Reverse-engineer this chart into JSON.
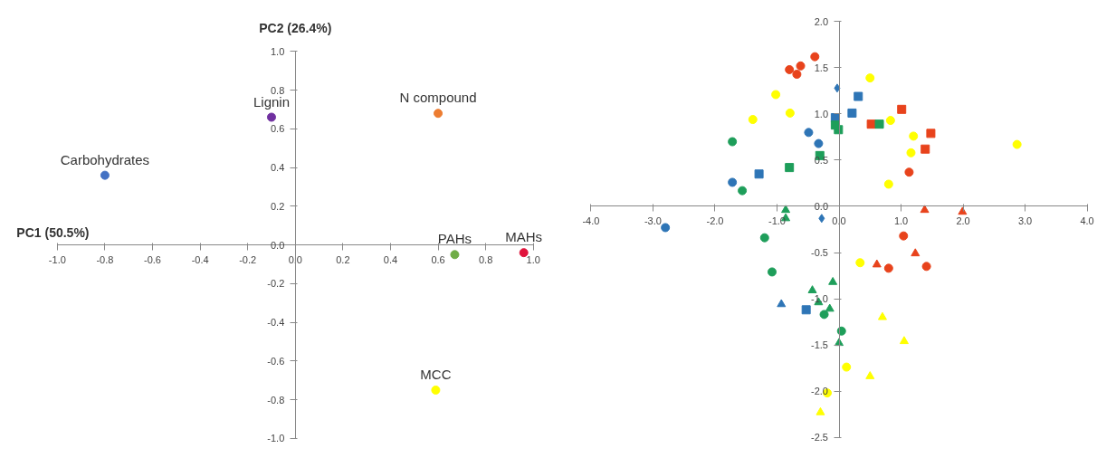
{
  "chart_data": [
    {
      "type": "scatter",
      "xlabel": "PC1 (50.5%)",
      "ylabel": "PC2 (26.4%)",
      "grid": false,
      "marker": "circle",
      "xlim": [
        -1.0,
        1.0
      ],
      "ylim": [
        -1.0,
        1.0
      ],
      "xticks": [
        {
          "value": -1.0,
          "label": "-1.0"
        },
        {
          "value": -0.8,
          "label": "-0.8"
        },
        {
          "value": -0.6,
          "label": "-0.6"
        },
        {
          "value": -0.4,
          "label": "-0.4"
        },
        {
          "value": -0.2,
          "label": "-0.2"
        },
        {
          "value": 0,
          "label": "0.0"
        },
        {
          "value": 0.2,
          "label": "0.2"
        },
        {
          "value": 0.4,
          "label": "0.4"
        },
        {
          "value": 0.6,
          "label": "0.6"
        },
        {
          "value": 0.8,
          "label": "0.8"
        },
        {
          "value": 1.0,
          "label": "1.0"
        }
      ],
      "yticks": [
        {
          "value": -1.0,
          "label": "-1.0"
        },
        {
          "value": -0.8,
          "label": "-0.8"
        },
        {
          "value": -0.6,
          "label": "-0.6"
        },
        {
          "value": -0.4,
          "label": "-0.4"
        },
        {
          "value": -0.2,
          "label": "-0.2"
        },
        {
          "value": 0,
          "label": "0.0"
        },
        {
          "value": 0.2,
          "label": "0.2"
        },
        {
          "value": 0.4,
          "label": "0.4"
        },
        {
          "value": 0.6,
          "label": "0.6"
        },
        {
          "value": 0.8,
          "label": "0.8"
        },
        {
          "value": 1.0,
          "label": "1.0"
        }
      ],
      "series": [
        {
          "name": "Carbohydrates",
          "color": "#4472c4",
          "x": [
            -0.8
          ],
          "values": [
            0.36
          ]
        },
        {
          "name": "Lignin",
          "color": "#7030a0",
          "x": [
            -0.1
          ],
          "values": [
            0.66
          ]
        },
        {
          "name": "N compound",
          "color": "#ed7d31",
          "x": [
            0.6
          ],
          "values": [
            0.68
          ]
        },
        {
          "name": "PAHs",
          "color": "#70ad47",
          "x": [
            0.67
          ],
          "values": [
            -0.05
          ]
        },
        {
          "name": "MAHs",
          "color": "#e0143c",
          "x": [
            0.96
          ],
          "values": [
            -0.04
          ]
        },
        {
          "name": "MCC",
          "color": "#ffff00",
          "x": [
            0.59
          ],
          "values": [
            -0.75
          ]
        }
      ]
    },
    {
      "type": "scatter",
      "grid": false,
      "xlim": [
        -4.0,
        4.0
      ],
      "ylim": [
        -2.5,
        2.0
      ],
      "xticks": [
        {
          "value": -4,
          "label": "-4.0"
        },
        {
          "value": -3,
          "label": "-3.0"
        },
        {
          "value": -2,
          "label": "-2.0"
        },
        {
          "value": -1,
          "label": "-1.0"
        },
        {
          "value": 0,
          "label": "0.0"
        },
        {
          "value": 1,
          "label": "1.0"
        },
        {
          "value": 2,
          "label": "2.0"
        },
        {
          "value": 3,
          "label": "3.0"
        },
        {
          "value": 4,
          "label": "4.0"
        }
      ],
      "yticks": [
        {
          "value": -2.5,
          "label": "-2.5"
        },
        {
          "value": -2,
          "label": "-2.0"
        },
        {
          "value": -1.5,
          "label": "-1.5"
        },
        {
          "value": -1,
          "label": "-1.0"
        },
        {
          "value": -0.5,
          "label": "-0.5"
        },
        {
          "value": 0,
          "label": "0.0"
        },
        {
          "value": 0.5,
          "label": "0.5"
        },
        {
          "value": 1,
          "label": "1.0"
        },
        {
          "value": 1.5,
          "label": "1.5"
        },
        {
          "value": 2,
          "label": "2.0"
        }
      ],
      "series": [
        {
          "color": "#e8431c",
          "marker": "circle",
          "x": [
            -0.8,
            -0.68,
            -0.62,
            -0.39,
            1.13,
            0.8,
            1.41,
            1.04
          ],
          "values": [
            1.48,
            1.43,
            1.52,
            1.62,
            0.37,
            -0.67,
            -0.65,
            -0.32
          ]
        },
        {
          "color": "#e8431c",
          "marker": "square",
          "x": [
            0.52,
            1.01,
            1.48,
            1.39
          ],
          "values": [
            0.89,
            1.05,
            0.79,
            0.62
          ]
        },
        {
          "color": "#e8431c",
          "marker": "triangle",
          "x": [
            1.38,
            1.99,
            0.61,
            1.23
          ],
          "values": [
            -0.04,
            -0.06,
            -0.63,
            -0.51
          ]
        },
        {
          "color": "#ffff00",
          "marker": "circle",
          "x": [
            -1.02,
            -1.39,
            -0.79,
            0.83,
            1.2,
            1.16,
            2.87,
            0.8,
            0.5,
            0.34,
            0.12,
            -0.19
          ],
          "values": [
            1.21,
            0.94,
            1.01,
            0.93,
            0.76,
            0.58,
            0.67,
            0.24,
            1.39,
            -0.61,
            -1.74,
            -2.02
          ]
        },
        {
          "color": "#ffff00",
          "marker": "triangle",
          "x": [
            0.7,
            1.05,
            0.5,
            -0.3
          ],
          "values": [
            -1.2,
            -1.46,
            -1.84,
            -2.23
          ]
        },
        {
          "color": "#2e75b6",
          "marker": "circle",
          "x": [
            -0.49,
            -0.33,
            -1.72,
            -2.8
          ],
          "values": [
            0.8,
            0.68,
            0.26,
            -0.23
          ]
        },
        {
          "color": "#2e75b6",
          "marker": "diamond",
          "x": [
            -0.03,
            -0.28
          ],
          "values": [
            1.28,
            -0.13
          ]
        },
        {
          "color": "#2e75b6",
          "marker": "square",
          "x": [
            0.31,
            0.21,
            -0.06,
            -1.29,
            -0.53
          ],
          "values": [
            1.19,
            1.01,
            0.96,
            0.35,
            -1.12
          ]
        },
        {
          "color": "#2e75b6",
          "marker": "triangle",
          "x": [
            -0.93
          ],
          "values": [
            -1.06
          ]
        },
        {
          "color": "#1e9e5a",
          "marker": "circle",
          "x": [
            -1.72,
            -1.56,
            -1.2,
            -1.08,
            0.04,
            -0.24
          ],
          "values": [
            0.7,
            0.17,
            -0.34,
            -0.71,
            -1.35,
            -1.17
          ]
        },
        {
          "color": "#1e9e5a",
          "marker": "square",
          "x": [
            -0.8,
            -0.31,
            -0.01,
            -0.06,
            0.65
          ],
          "values": [
            0.42,
            0.55,
            0.83,
            0.88,
            0.89
          ]
        },
        {
          "color": "#1e9e5a",
          "marker": "triangle",
          "x": [
            -0.86,
            -0.86,
            -0.1,
            -0.43,
            -0.15,
            0.0,
            -0.33
          ],
          "values": [
            -0.04,
            -0.13,
            -0.82,
            -0.91,
            -1.11,
            -1.48,
            -1.04
          ]
        }
      ]
    }
  ]
}
